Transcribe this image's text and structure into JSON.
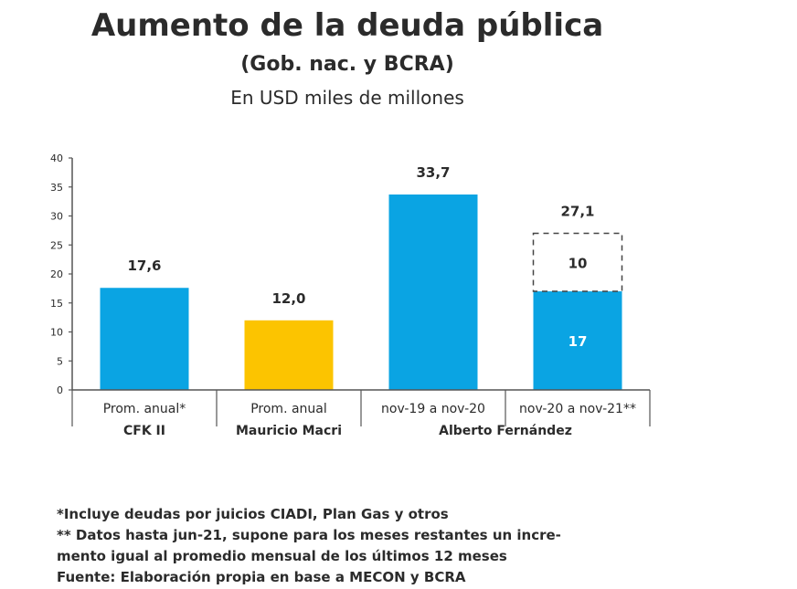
{
  "chart_data": {
    "type": "bar",
    "title": "Aumento de la deuda pública",
    "subtitle": "(Gob. nac. y BCRA)",
    "unit_label": "En USD miles de millones",
    "ylim": [
      0,
      40
    ],
    "yticks": [
      "0",
      "5",
      "10",
      "15",
      "20",
      "25",
      "30",
      "35",
      "40"
    ],
    "categories": [
      "Prom. anual*",
      "Prom. anual",
      "nov-19 a nov-20",
      "nov-20 a nov-21**"
    ],
    "groups": [
      {
        "label": "CFK II",
        "span": [
          0,
          0
        ]
      },
      {
        "label": "Mauricio Macri",
        "span": [
          1,
          1
        ]
      },
      {
        "label": "Alberto Fernández",
        "span": [
          2,
          3
        ]
      }
    ],
    "bars": [
      {
        "value": 17.6,
        "label": "17,6",
        "color": "#0aa4e3"
      },
      {
        "value": 12.0,
        "label": "12,0",
        "color": "#fcc400"
      },
      {
        "value": 33.7,
        "label": "33,7",
        "color": "#0aa4e3"
      },
      {
        "value": 17,
        "label": "27,1",
        "color": "#0aa4e3",
        "inner_label": "17",
        "projected": {
          "value": 10,
          "label": "10"
        }
      }
    ]
  },
  "footnotes": [
    "*Incluye deudas por juicios CIADI, Plan Gas y otros",
    "** Datos hasta jun-21, supone para los meses restantes un incre-",
    "mento igual al promedio mensual de los últimos 12 meses",
    "Fuente: Elaboración propia en base a MECON y BCRA"
  ]
}
